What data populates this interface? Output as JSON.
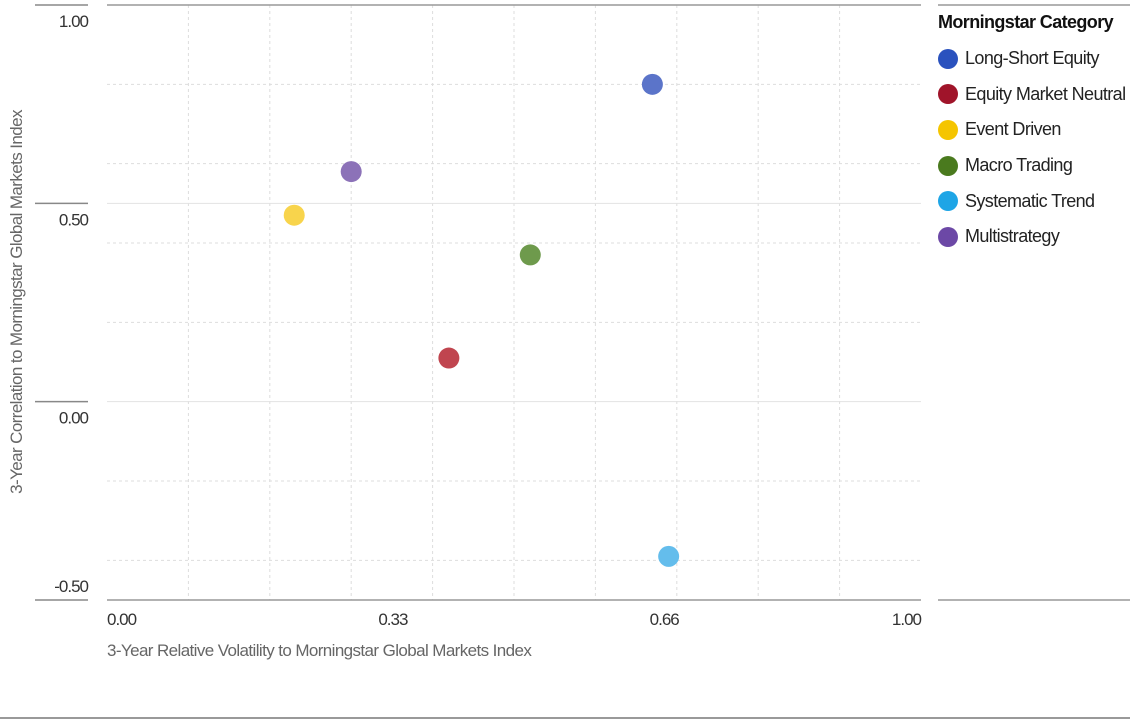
{
  "chart_data": {
    "type": "scatter",
    "xlabel": "3-Year Relative Volatility to Morningstar Global Markets Index",
    "ylabel": "3-Year Correlation to Morningstar Global Markets Index",
    "xlim": [
      0,
      1
    ],
    "ylim": [
      -0.5,
      1
    ],
    "x_ticks": [
      "0.00",
      "0.33",
      "0.66",
      "1.00"
    ],
    "y_ticks": [
      "1.00",
      "0.50",
      "0.00",
      "-0.50"
    ],
    "grid": true,
    "legend_title": "Morningstar Category",
    "legend_position": "right",
    "series": [
      {
        "name": "Long-Short Equity",
        "color": "#2a52be",
        "point_color": "#5b74c9",
        "x": 0.67,
        "y": 0.8
      },
      {
        "name": "Equity Market Neutral",
        "color": "#a0142a",
        "point_color": "#c0454f",
        "x": 0.42,
        "y": 0.11
      },
      {
        "name": "Event Driven",
        "color": "#f5c500",
        "point_color": "#f8d44c",
        "x": 0.23,
        "y": 0.47
      },
      {
        "name": "Macro Trading",
        "color": "#4a7a1e",
        "point_color": "#6e9a4c",
        "x": 0.52,
        "y": 0.37
      },
      {
        "name": "Systematic Trend",
        "color": "#1ea5e6",
        "point_color": "#64bdec",
        "x": 0.69,
        "y": -0.39
      },
      {
        "name": "Multistrategy",
        "color": "#6c48a6",
        "point_color": "#8c72b8",
        "x": 0.3,
        "y": 0.58
      }
    ]
  }
}
